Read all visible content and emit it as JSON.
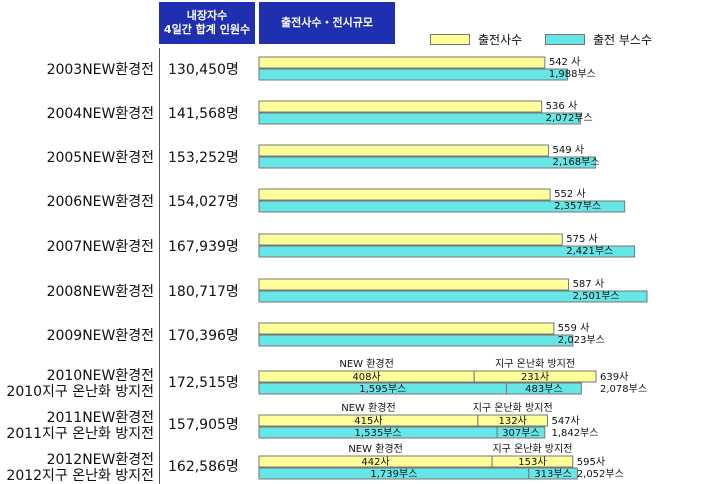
{
  "header": {
    "visitors_line1": "내장자수",
    "visitors_line2": "4일간 합계 인원수",
    "exhibitors": "출전사수・전시규모"
  },
  "legend": {
    "companies": "출전사수",
    "booths": "출전 부스수"
  },
  "colors": {
    "header_bg": "#1e2fb0",
    "companies_bar": "#ffff99",
    "booths_bar": "#66e6e6"
  },
  "units": {
    "companies": "사",
    "booths": "부스",
    "visitors": "명"
  },
  "rows": [
    {
      "label": "2003NEW환경전",
      "visitors": "130,450명"
    },
    {
      "label": "2004NEW환경전",
      "visitors": "141,568명"
    },
    {
      "label": "2005NEW환경전",
      "visitors": "153,252명"
    },
    {
      "label": "2006NEW환경전",
      "visitors": "154,027명"
    },
    {
      "label": "2007NEW환경전",
      "visitors": "167,939명"
    },
    {
      "label": "2008NEW환경전",
      "visitors": "180,717명"
    },
    {
      "label": "2009NEW환경전",
      "visitors": "170,396명"
    },
    {
      "label": "2010NEW환경전",
      "label2": "2010지구 온난화 방지전",
      "visitors": "172,515명"
    },
    {
      "label": "2011NEW환경전",
      "label2": "2011지구 온난화 방지전",
      "visitors": "157,905명"
    },
    {
      "label": "2012NEW환경전",
      "label2": "2012지구 온난화 방지전",
      "visitors": "162,586명"
    }
  ],
  "chart_data": {
    "type": "bar",
    "orientation": "horizontal",
    "categories": [
      "2003NEW환경전",
      "2004NEW환경전",
      "2005NEW환경전",
      "2006NEW환경전",
      "2007NEW환경전",
      "2008NEW환경전",
      "2009NEW환경전",
      "2010NEW환경전",
      "2011NEW환경전",
      "2012NEW환경전"
    ],
    "series": [
      {
        "name": "출전사수",
        "values": [
          542,
          536,
          549,
          552,
          575,
          587,
          559,
          639,
          547,
          595
        ]
      },
      {
        "name": "출전 부스수",
        "values": [
          1988,
          2072,
          2168,
          2357,
          2421,
          2501,
          2023,
          2078,
          1842,
          2052
        ]
      }
    ],
    "visitors": [
      130450,
      141568,
      153252,
      154027,
      167939,
      180717,
      170396,
      172515,
      157905,
      162586
    ],
    "segment_labels": {
      "new": "NEW 환경전",
      "warming": "지구 온난화 방지전"
    },
    "breakdown": [
      {
        "category": "2010NEW환경전",
        "companies_new": 408,
        "companies_warming": 231,
        "booths_new": 1595,
        "booths_warming": 483
      },
      {
        "category": "2011NEW환경전",
        "companies_new": 415,
        "companies_warming": 132,
        "booths_new": 1535,
        "booths_warming": 307
      },
      {
        "category": "2012NEW환경전",
        "companies_new": 442,
        "companies_warming": 153,
        "booths_new": 1739,
        "booths_warming": 313
      }
    ],
    "legend_position": "top-right"
  }
}
